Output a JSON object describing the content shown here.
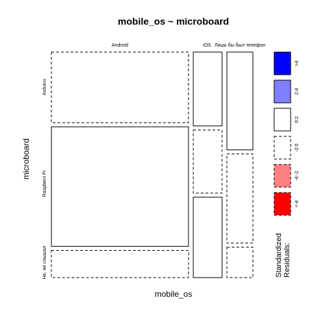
{
  "chart_data": {
    "type": "mosaic",
    "title": "mobile_os ~ microboard",
    "xlabel": "mobile_os",
    "ylabel": "microboard",
    "columns": [
      "Android",
      "iOS",
      "Лишь бы был телефон"
    ],
    "rows": [
      "Arduino",
      "Raspberri Pi",
      "Не, не слышал"
    ],
    "cells": [
      {
        "column": "Android",
        "row": "Arduino",
        "proportion": 0.325,
        "residual_class": "-2:0"
      },
      {
        "column": "Android",
        "row": "Raspberri Pi",
        "proportion": 0.55,
        "residual_class": "0:2"
      },
      {
        "column": "Android",
        "row": "Не, не слышал",
        "proportion": 0.125,
        "residual_class": "-2:0"
      },
      {
        "column": "iOS",
        "row": "Arduino",
        "proportion": 0.34,
        "residual_class": "0:2"
      },
      {
        "column": "iOS",
        "row": "Raspberri Pi",
        "proportion": 0.29,
        "residual_class": "-2:0"
      },
      {
        "column": "iOS",
        "row": "Не, не слышал",
        "proportion": 0.37,
        "residual_class": "0:2"
      },
      {
        "column": "Лишь бы был телефон",
        "row": "Arduino",
        "proportion": 0.45,
        "residual_class": "0:2"
      },
      {
        "column": "Лишь бы был телефон",
        "row": "Raspberri Pi",
        "proportion": 0.41,
        "residual_class": "-2:0"
      },
      {
        "column": "Лишь бы был телефон",
        "row": "Не, не слышал",
        "proportion": 0.14,
        "residual_class": "-2:0"
      }
    ],
    "column_proportions": [
      0.67,
      0.15,
      0.14
    ],
    "legend": {
      "title_lines": [
        "Standardized",
        "Residuals:"
      ],
      "items": [
        {
          "label": ">4",
          "fill": "#0000ff",
          "dashed": false
        },
        {
          "label": "2:4",
          "fill": "#8080ff",
          "dashed": false
        },
        {
          "label": "0:2",
          "fill": "#ffffff",
          "dashed": false
        },
        {
          "label": "-2:0",
          "fill": "#ffffff",
          "dashed": true
        },
        {
          "label": "-4:-2",
          "fill": "#ff8080",
          "dashed": true
        },
        {
          "label": "<-4",
          "fill": "#ff0000",
          "dashed": true
        }
      ]
    }
  }
}
